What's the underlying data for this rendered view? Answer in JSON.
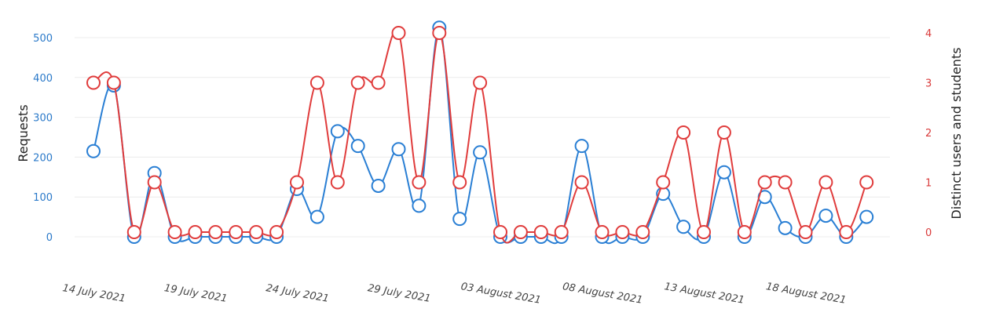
{
  "chart_data": {
    "type": "line",
    "xlabel": "",
    "ylabel": "Requests",
    "ylabel_right": "Distinct users and students",
    "x_tick_labels": [
      "14 July 2021",
      "19 July 2021",
      "24 July 2021",
      "29 July 2021",
      "03 August 2021",
      "08 August 2021",
      "13 August 2021",
      "18 August 2021"
    ],
    "y_ticks_left": [
      0,
      100,
      200,
      300,
      400,
      500
    ],
    "y_ticks_right": [
      0,
      1,
      2,
      3,
      4
    ],
    "ylim_left": [
      0,
      540
    ],
    "ylim_right": [
      0,
      4.3
    ],
    "grid": true,
    "dates": [
      "2021-07-14",
      "2021-07-15",
      "2021-07-16",
      "2021-07-17",
      "2021-07-18",
      "2021-07-19",
      "2021-07-20",
      "2021-07-21",
      "2021-07-22",
      "2021-07-23",
      "2021-07-24",
      "2021-07-25",
      "2021-07-26",
      "2021-07-27",
      "2021-07-28",
      "2021-07-29",
      "2021-07-30",
      "2021-07-31",
      "2021-08-01",
      "2021-08-02",
      "2021-08-03",
      "2021-08-04",
      "2021-08-05",
      "2021-08-06",
      "2021-08-07",
      "2021-08-08",
      "2021-08-09",
      "2021-08-10",
      "2021-08-11",
      "2021-08-12",
      "2021-08-13",
      "2021-08-14",
      "2021-08-15",
      "2021-08-16",
      "2021-08-17",
      "2021-08-18",
      "2021-08-19",
      "2021-08-20",
      "2021-08-21"
    ],
    "series": [
      {
        "axis": "left",
        "color": "#2a7fd4",
        "values": [
          215,
          380,
          0,
          160,
          0,
          0,
          0,
          0,
          0,
          0,
          120,
          50,
          265,
          228,
          128,
          220,
          78,
          525,
          45,
          212,
          0,
          0,
          0,
          0,
          228,
          0,
          0,
          0,
          108,
          25,
          0,
          162,
          0,
          100,
          22,
          0,
          53,
          0,
          50
        ]
      },
      {
        "axis": "right",
        "color": "#e03c3c",
        "values": [
          3,
          3,
          0,
          1,
          0,
          0,
          0,
          0,
          0,
          0,
          1,
          3,
          1,
          3,
          3,
          4,
          1,
          4,
          1,
          3,
          0,
          0,
          0,
          0,
          1,
          0,
          0,
          0,
          1,
          2,
          0,
          2,
          0,
          1,
          1,
          0,
          1,
          0,
          1
        ]
      }
    ]
  }
}
